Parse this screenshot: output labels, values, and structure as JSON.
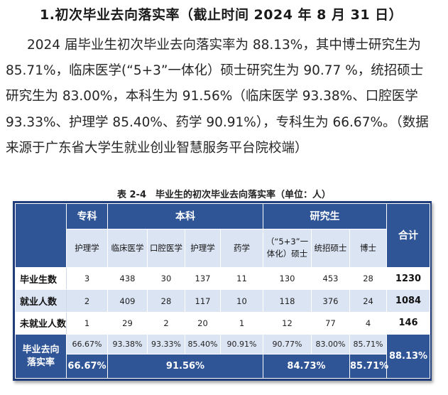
{
  "heading": "1.初次毕业去向落实率（截止时间 2024 年 8 月 31 日）",
  "paragraph": "2024 届毕业生初次毕业去向落实率为 88.13%，其中博士研究生为 85.71%，临床医学(“5+3”一体化）硕士研究生为 90.77 %，统招硕士研究生为 83.00%，本科生为 91.56%（临床医学 93.38%、口腔医学 93.33%、护理学 85.40%、药学 90.91%），专科生为 66.67%。（数据来源于广东省大学生就业创业智慧服务平台院校端）",
  "table": {
    "caption": "表 2-4　毕业生的初次毕业去向落实率（单位：人）",
    "groups": {
      "zhuanke": "专科",
      "benke": "本科",
      "yanjiusheng": "研究生",
      "total": "合计"
    },
    "subheaders": [
      "护理学",
      "临床医学",
      "口腔医学",
      "护理学",
      "药学",
      "（“5+3”一体化）硕士",
      "统招硕士",
      "博士"
    ],
    "rows": [
      {
        "label": "毕业生数",
        "values": [
          "3",
          "438",
          "30",
          "137",
          "11",
          "130",
          "453",
          "28"
        ],
        "total": "1230"
      },
      {
        "label": "就业人数",
        "values": [
          "2",
          "409",
          "28",
          "117",
          "10",
          "118",
          "376",
          "24"
        ],
        "total": "1084"
      },
      {
        "label": "未就业人数",
        "values": [
          "1",
          "29",
          "2",
          "20",
          "1",
          "12",
          "77",
          "4"
        ],
        "total": "146"
      }
    ],
    "rate": {
      "label": "毕业去向落实率",
      "per_major": [
        "66.67%",
        "93.38%",
        "93.33%",
        "85.40%",
        "90.91%",
        "90.77%",
        "83.00%",
        "85.71%"
      ],
      "group_zhuanke": "66.67%",
      "group_benke": "91.56%",
      "group_shuoshi": "84.73%",
      "group_boshi": "85.71%",
      "total": "88.13%"
    }
  }
}
